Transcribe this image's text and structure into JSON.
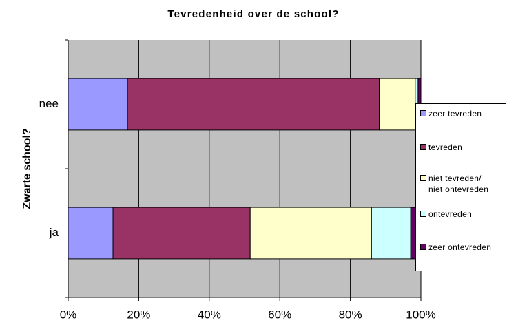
{
  "chart_data": {
    "type": "stacked_barh",
    "title": "Tevredenheid over de school?",
    "y_label": "Zwarte school?",
    "categories": [
      "nee",
      "ja"
    ],
    "series": [
      {
        "name": "zeer tevreden",
        "color": "#9999ff",
        "values": [
          16.8,
          12.7
        ]
      },
      {
        "name": "tevreden",
        "color": "#993366",
        "values": [
          71.4,
          38.9
        ]
      },
      {
        "name": "niet tevreden/ niet ontevreden",
        "color": "#ffffcc",
        "values": [
          10.2,
          34.4
        ]
      },
      {
        "name": "ontevreden",
        "color": "#ccffff",
        "values": [
          0.8,
          11.1
        ]
      },
      {
        "name": "zeer ontevreden",
        "color": "#660066",
        "values": [
          0.8,
          2.9
        ]
      }
    ],
    "xlim": [
      0,
      100
    ],
    "xticks": [
      {
        "value": 0,
        "label": "0%"
      },
      {
        "value": 20,
        "label": "20%"
      },
      {
        "value": 40,
        "label": "40%"
      },
      {
        "value": 60,
        "label": "60%"
      },
      {
        "value": 80,
        "label": "80%"
      },
      {
        "value": 100,
        "label": "100%"
      }
    ],
    "grid": true,
    "legend": "right"
  }
}
